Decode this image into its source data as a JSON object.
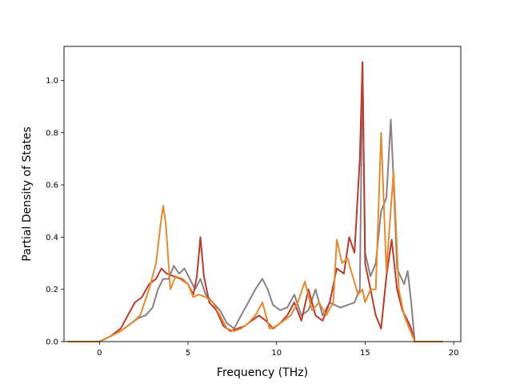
{
  "chart_data": {
    "type": "line",
    "xlabel": "Frequency (THz)",
    "ylabel": "Partial Density of States",
    "xlim": [
      -2.0,
      20.4
    ],
    "ylim": [
      0.0,
      1.13
    ],
    "xticks": [
      0,
      5,
      10,
      15,
      20
    ],
    "yticks": [
      0.0,
      0.2,
      0.4,
      0.6,
      0.8,
      1.0
    ],
    "grid": false,
    "legend": false,
    "series": [
      {
        "color": "#8a7f86",
        "x": [
          -1.8,
          0,
          0.6,
          1.2,
          1.8,
          2.2,
          2.6,
          3,
          3.3,
          3.6,
          3.9,
          4.2,
          4.5,
          4.8,
          5.1,
          5.4,
          5.7,
          6,
          6.4,
          6.8,
          7.2,
          7.6,
          8,
          8.4,
          8.8,
          9.2,
          9.5,
          9.8,
          10.2,
          10.6,
          11,
          11.4,
          11.8,
          12.2,
          12.6,
          13,
          13.3,
          13.6,
          14,
          14.4,
          14.7,
          14.85,
          15,
          15.3,
          15.6,
          15.9,
          16.2,
          16.45,
          16.6,
          16.8,
          17,
          17.2,
          17.4,
          17.6,
          17.8,
          18.5,
          19.4
        ],
        "y": [
          0,
          0,
          0.02,
          0.04,
          0.07,
          0.09,
          0.1,
          0.13,
          0.2,
          0.24,
          0.24,
          0.29,
          0.26,
          0.28,
          0.24,
          0.2,
          0.24,
          0.18,
          0.15,
          0.12,
          0.07,
          0.05,
          0.1,
          0.15,
          0.2,
          0.24,
          0.2,
          0.14,
          0.12,
          0.13,
          0.18,
          0.1,
          0.12,
          0.2,
          0.1,
          0.15,
          0.14,
          0.13,
          0.14,
          0.15,
          0.2,
          1.07,
          0.34,
          0.25,
          0.3,
          0.5,
          0.55,
          0.85,
          0.62,
          0.28,
          0.25,
          0.22,
          0.27,
          0.15,
          0,
          0,
          0
        ]
      },
      {
        "color": "#c0392b",
        "x": [
          -1.8,
          0,
          0.6,
          1.2,
          1.6,
          2,
          2.4,
          2.8,
          3.2,
          3.5,
          3.8,
          4.2,
          4.6,
          5,
          5.3,
          5.5,
          5.7,
          5.9,
          6.2,
          6.6,
          7,
          7.4,
          7.8,
          8.2,
          8.6,
          9,
          9.4,
          9.8,
          10.2,
          10.6,
          11,
          11.4,
          11.8,
          12.2,
          12.6,
          13,
          13.4,
          13.8,
          14.1,
          14.4,
          14.7,
          14.85,
          15,
          15.3,
          15.6,
          15.9,
          16.2,
          16.5,
          16.8,
          17.1,
          17.4,
          17.6,
          17.8,
          18.5,
          19.4
        ],
        "y": [
          0,
          0,
          0.02,
          0.05,
          0.1,
          0.15,
          0.17,
          0.22,
          0.24,
          0.28,
          0.26,
          0.25,
          0.24,
          0.22,
          0.18,
          0.25,
          0.4,
          0.25,
          0.15,
          0.12,
          0.06,
          0.04,
          0.05,
          0.06,
          0.08,
          0.1,
          0.08,
          0.05,
          0.07,
          0.1,
          0.15,
          0.08,
          0.2,
          0.1,
          0.08,
          0.15,
          0.28,
          0.26,
          0.4,
          0.34,
          0.7,
          1.07,
          0.3,
          0.2,
          0.1,
          0.05,
          0.25,
          0.39,
          0.2,
          0.12,
          0.08,
          0.05,
          0,
          0,
          0
        ]
      },
      {
        "color": "#e8892c",
        "x": [
          -1.8,
          0,
          0.6,
          1.2,
          1.8,
          2.3,
          2.8,
          3.2,
          3.45,
          3.6,
          3.75,
          4,
          4.3,
          4.7,
          5,
          5.3,
          5.6,
          6,
          6.4,
          6.8,
          7.2,
          7.6,
          8,
          8.4,
          8.8,
          9.2,
          9.6,
          10,
          10.4,
          10.8,
          11.2,
          11.6,
          12,
          12.4,
          12.8,
          13.2,
          13.4,
          13.7,
          14,
          14.3,
          14.6,
          14.85,
          15,
          15.3,
          15.6,
          15.9,
          16.2,
          16.6,
          16.9,
          17.2,
          17.5,
          17.8,
          18.5,
          19.4
        ],
        "y": [
          0,
          0,
          0.02,
          0.04,
          0.07,
          0.1,
          0.2,
          0.3,
          0.45,
          0.52,
          0.45,
          0.2,
          0.25,
          0.24,
          0.22,
          0.17,
          0.18,
          0.17,
          0.15,
          0.1,
          0.05,
          0.04,
          0.05,
          0.07,
          0.1,
          0.15,
          0.05,
          0.06,
          0.08,
          0.1,
          0.15,
          0.23,
          0.12,
          0.15,
          0.1,
          0.15,
          0.39,
          0.3,
          0.32,
          0.25,
          0.18,
          0.2,
          0.15,
          0.2,
          0.2,
          0.8,
          0.27,
          0.65,
          0.2,
          0.1,
          0.05,
          0,
          0,
          0
        ]
      }
    ]
  }
}
